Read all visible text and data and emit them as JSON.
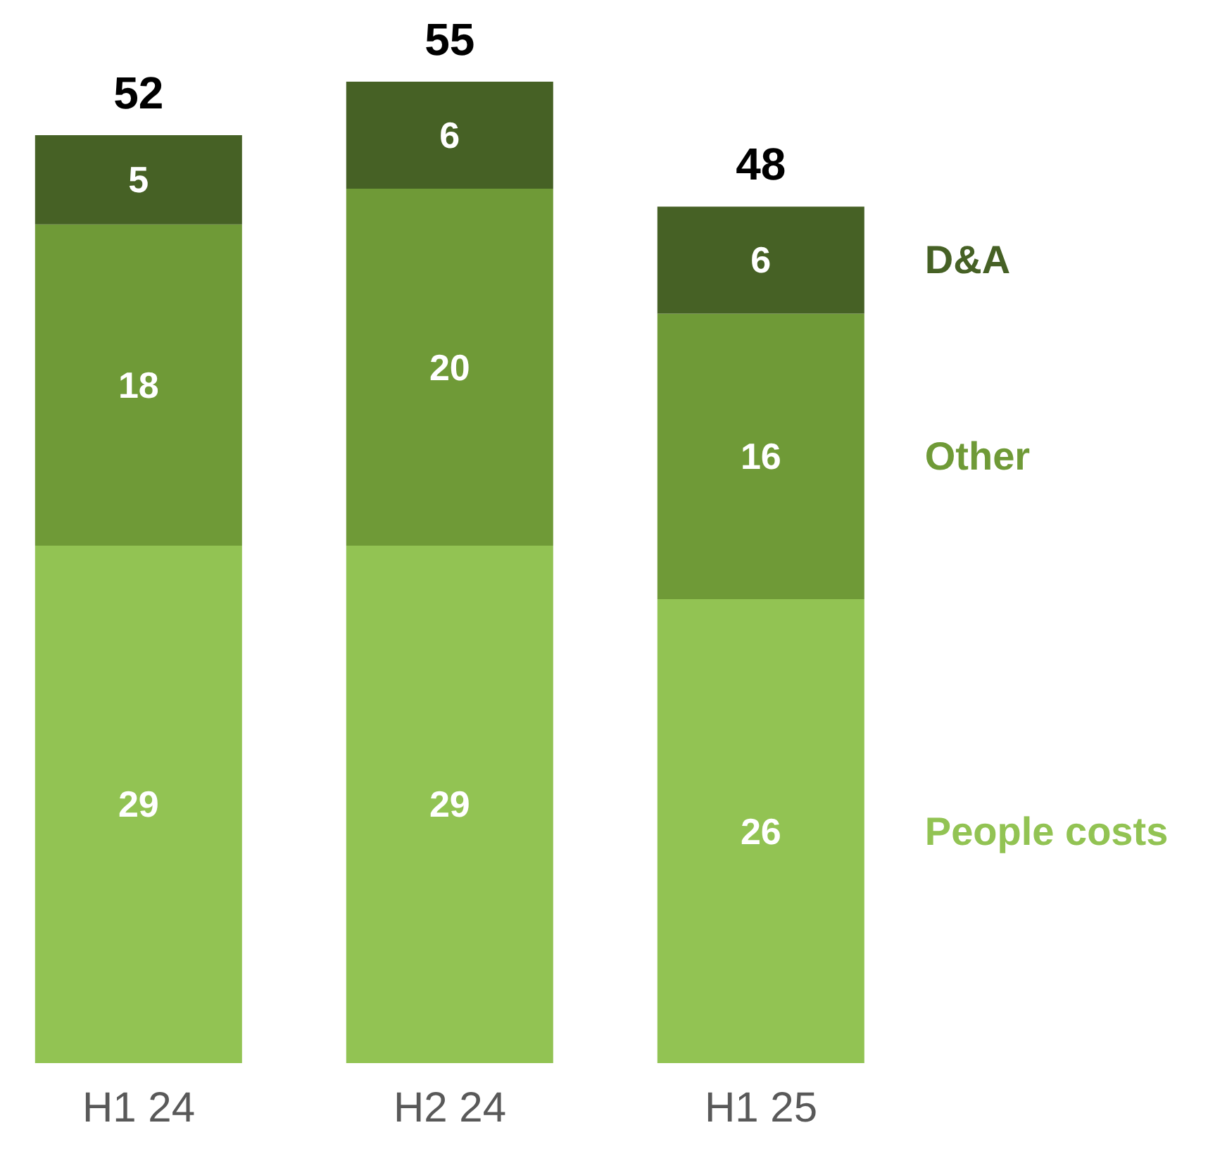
{
  "chart_data": {
    "type": "bar",
    "stacked": true,
    "categories": [
      "H1 24",
      "H2 24",
      "H1 25"
    ],
    "series": [
      {
        "name": "People costs",
        "color": "#92c353",
        "values": [
          29,
          29,
          26
        ]
      },
      {
        "name": "Other",
        "color": "#6f9a37",
        "values": [
          18,
          20,
          16
        ]
      },
      {
        "name": "D&A",
        "color": "#466125",
        "values": [
          5,
          6,
          6
        ]
      }
    ],
    "data_labels": true,
    "totals": [
      "52",
      "55",
      "48"
    ],
    "legend": "right"
  }
}
